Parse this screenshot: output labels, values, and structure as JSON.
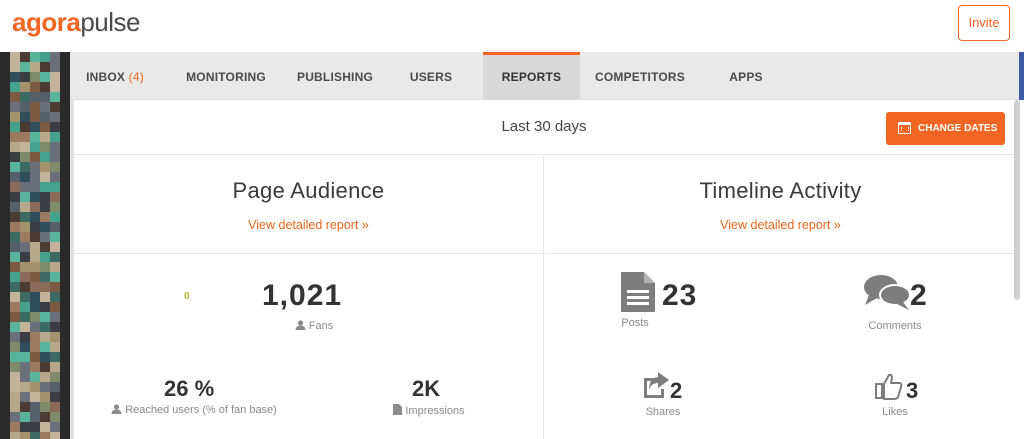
{
  "app": {
    "logo_part1": "agora",
    "logo_part2": "pulse",
    "invite_label": "Invite"
  },
  "nav": {
    "tabs": [
      {
        "label": "INBOX",
        "count": "(4)"
      },
      {
        "label": "MONITORING"
      },
      {
        "label": "PUBLISHING"
      },
      {
        "label": "USERS"
      },
      {
        "label": "REPORTS",
        "active": true
      },
      {
        "label": "COMPETITORS"
      },
      {
        "label": "APPS"
      }
    ]
  },
  "report": {
    "date_range": "Last 30 days",
    "change_dates_label": "CHANGE DATES"
  },
  "page_audience": {
    "title": "Page Audience",
    "link": "View detailed report »",
    "delta": "0",
    "fans_value": "1,021",
    "fans_label": "Fans",
    "reached_value": "26 %",
    "reached_label": "Reached users (% of fan base)",
    "impressions_value": "2K",
    "impressions_label": "Impressions"
  },
  "timeline_activity": {
    "title": "Timeline Activity",
    "link": "View detailed report »",
    "posts_value": "23",
    "posts_label": "Posts",
    "comments_value": "2",
    "comments_label": "Comments",
    "shares_value": "2",
    "shares_label": "Shares",
    "likes_value": "3",
    "likes_label": "Likes"
  },
  "icons": [
    "calendar-icon",
    "user-icon",
    "file-icon",
    "document-icon",
    "comments-icon",
    "share-icon",
    "thumbs-up-icon"
  ],
  "colors": {
    "accent": "#f26522",
    "nav_bg": "#e9e9e9",
    "text": "#333333"
  }
}
